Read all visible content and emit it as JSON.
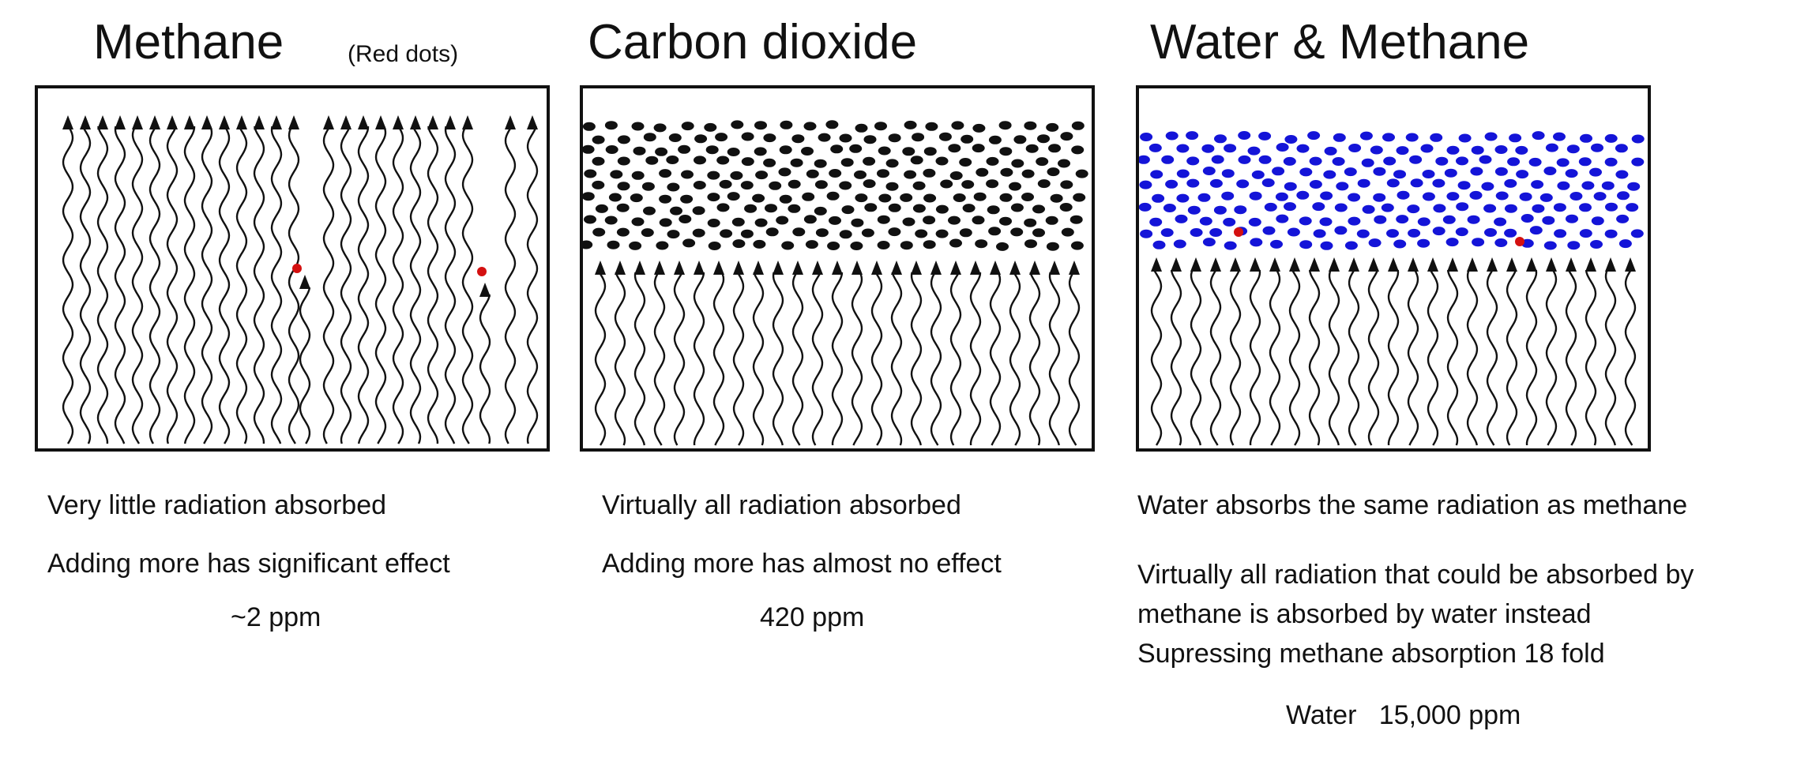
{
  "panels": [
    {
      "title": "Methane",
      "subtitle": "(Red dots)",
      "molecule_color": "#d41010",
      "captions": [
        "Very little radiation absorbed",
        "Adding more has significant effect"
      ],
      "concentration": "~2 ppm"
    },
    {
      "title": "Carbon dioxide",
      "molecule_color": "#111111",
      "captions": [
        "Virtually all radiation absorbed",
        "Adding more has almost no effect"
      ],
      "concentration": "420 ppm"
    },
    {
      "title": "Water & Methane",
      "molecule_color": "#1414d8",
      "methane_color": "#d41010",
      "captions": [
        "Water absorbs the same radiation as methane",
        "Virtually all radiation that could be absorbed by",
        "methane is absorbed by water instead",
        "Supressing methane absorption 18 fold"
      ],
      "concentration": "Water   15,000 ppm"
    }
  ]
}
